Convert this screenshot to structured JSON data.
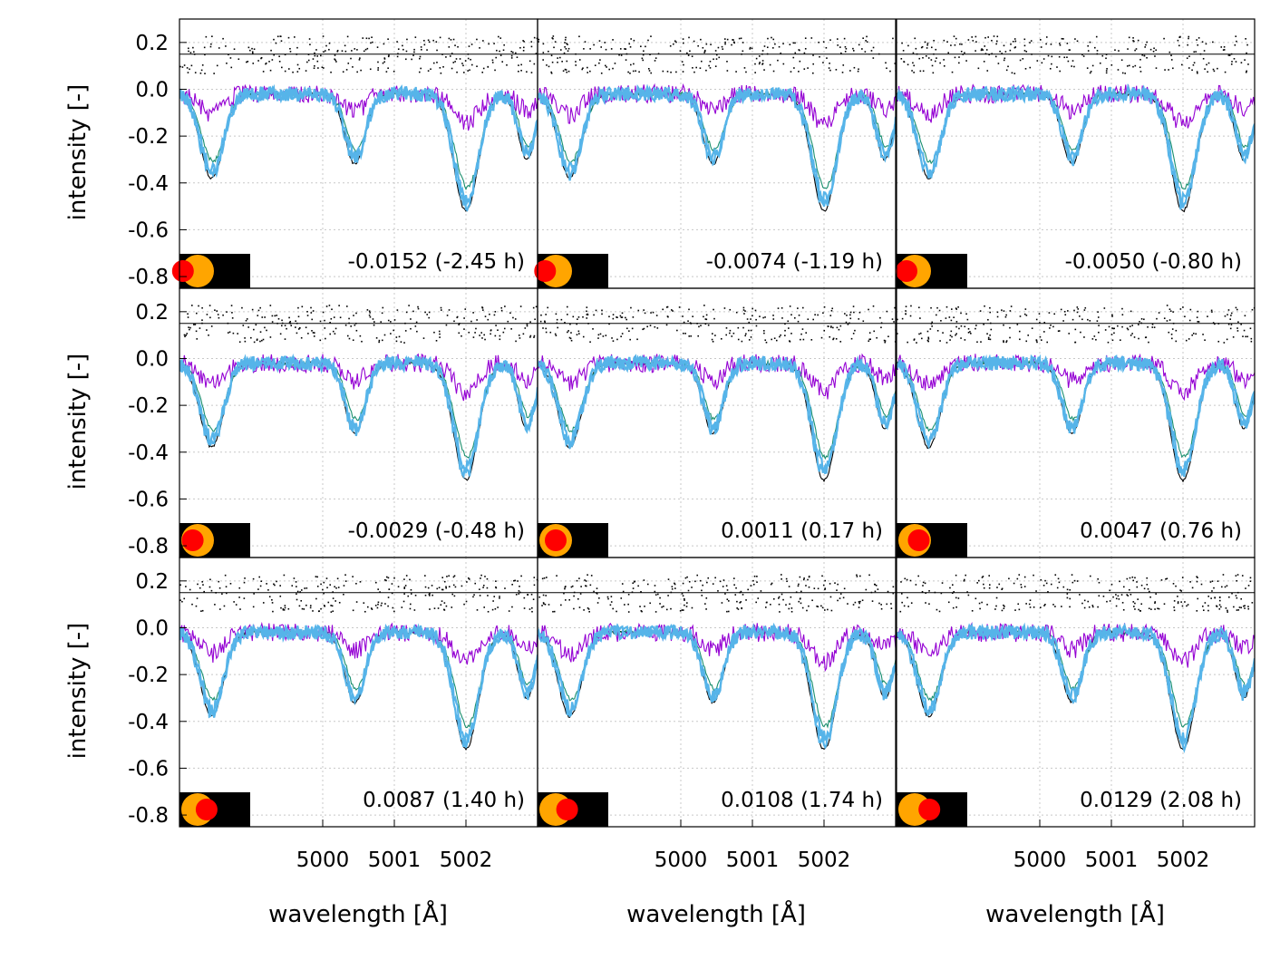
{
  "figure": {
    "ylabel": "intensity [-]",
    "xlabel": "wavelength [Å]"
  },
  "chart_data": {
    "type": "line",
    "layout": "3x3 grid of panels",
    "xlim": [
      4998.0,
      5003.0
    ],
    "ylim": [
      -0.85,
      0.3
    ],
    "xticks": [
      5000,
      5001,
      5002
    ],
    "yticks": [
      0.2,
      0.0,
      -0.2,
      -0.4,
      -0.6,
      -0.8
    ],
    "ytick_labels": [
      "0.2",
      "0.0",
      "-0.2",
      "-0.4",
      "-0.6",
      "-0.8"
    ],
    "xtick_labels": [
      "5000",
      "5001",
      "5002"
    ],
    "grid": true,
    "residual_reference_line": 0.15,
    "colors": {
      "black": "#000000",
      "purple": "#9400d3",
      "green": "#1a8f6e",
      "blue": "#56b4e9",
      "planet": "#ff0000",
      "star": "#ffa500"
    },
    "panels": [
      {
        "label": "-0.0152 (-2.45 h)",
        "phase": -0.0152,
        "hours": -2.45,
        "planet_x": 0.1,
        "seed": 11
      },
      {
        "label": "-0.0074 (-1.19 h)",
        "phase": -0.0074,
        "hours": -1.19,
        "planet_x": 0.35,
        "seed": 23
      },
      {
        "label": "-0.0050 (-0.80 h)",
        "phase": -0.005,
        "hours": -0.8,
        "planet_x": 0.5,
        "seed": 37
      },
      {
        "label": "-0.0029 (-0.48 h)",
        "phase": -0.0029,
        "hours": -0.48,
        "planet_x": 0.7,
        "seed": 41
      },
      {
        "label": "0.0011 (0.17 h)",
        "phase": 0.0011,
        "hours": 0.17,
        "planet_x": 1.0,
        "seed": 53
      },
      {
        "label": "0.0047 (0.76 h)",
        "phase": 0.0047,
        "hours": 0.76,
        "planet_x": 1.25,
        "seed": 67
      },
      {
        "label": "0.0087 (1.40 h)",
        "phase": 0.0087,
        "hours": 1.4,
        "planet_x": 1.55,
        "seed": 71
      },
      {
        "label": "0.0108 (1.74 h)",
        "phase": 0.0108,
        "hours": 1.74,
        "planet_x": 1.7,
        "seed": 83
      },
      {
        "label": "0.0129 (2.08 h)",
        "phase": 0.0129,
        "hours": 2.08,
        "planet_x": 1.9,
        "seed": 97
      }
    ],
    "absorption_lines": [
      {
        "center": 4998.45,
        "depth": 0.36,
        "width": 0.16
      },
      {
        "center": 5000.45,
        "depth": 0.3,
        "width": 0.14
      },
      {
        "center": 5002.0,
        "depth": 0.5,
        "width": 0.17
      },
      {
        "center": 5002.85,
        "depth": 0.28,
        "width": 0.12
      }
    ]
  }
}
